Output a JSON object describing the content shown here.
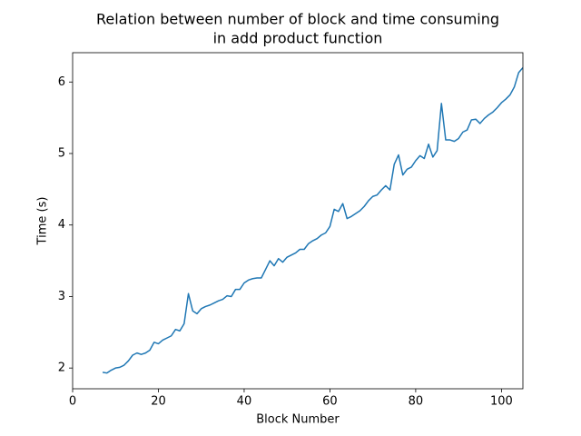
{
  "chart_data": {
    "type": "line",
    "title": [
      "Relation between number of block and time consuming",
      "in add product function"
    ],
    "x_label": "Block Number",
    "y_label": "Time (s)",
    "x": [
      7,
      8,
      9,
      10,
      11,
      12,
      13,
      14,
      15,
      16,
      17,
      18,
      19,
      20,
      21,
      22,
      23,
      24,
      25,
      26,
      27,
      28,
      29,
      30,
      31,
      32,
      33,
      34,
      35,
      36,
      37,
      38,
      39,
      40,
      41,
      42,
      43,
      44,
      45,
      46,
      47,
      48,
      49,
      50,
      51,
      52,
      53,
      54,
      55,
      56,
      57,
      58,
      59,
      60,
      61,
      62,
      63,
      64,
      65,
      66,
      67,
      68,
      69,
      70,
      71,
      72,
      73,
      74,
      75,
      76,
      77,
      78,
      79,
      80,
      81,
      82,
      83,
      84,
      85,
      86,
      87,
      88,
      89,
      90,
      91,
      92,
      93,
      94,
      95,
      96,
      97,
      98,
      99,
      100,
      101,
      102,
      103,
      104,
      105
    ],
    "series": [
      {
        "color": "#1f77b4",
        "values": [
          1.94,
          1.93,
          1.97,
          2.0,
          2.01,
          2.04,
          2.1,
          2.18,
          2.21,
          2.19,
          2.21,
          2.25,
          2.36,
          2.34,
          2.39,
          2.42,
          2.45,
          2.54,
          2.52,
          2.62,
          3.04,
          2.8,
          2.76,
          2.83,
          2.86,
          2.88,
          2.91,
          2.94,
          2.96,
          3.01,
          3.0,
          3.1,
          3.1,
          3.19,
          3.23,
          3.25,
          3.26,
          3.26,
          3.38,
          3.5,
          3.43,
          3.53,
          3.48,
          3.55,
          3.58,
          3.61,
          3.66,
          3.66,
          3.74,
          3.78,
          3.81,
          3.86,
          3.89,
          3.98,
          4.22,
          4.19,
          4.3,
          4.09,
          4.12,
          4.16,
          4.2,
          4.26,
          4.34,
          4.4,
          4.42,
          4.49,
          4.55,
          4.49,
          4.85,
          4.98,
          4.7,
          4.78,
          4.81,
          4.9,
          4.97,
          4.93,
          5.13,
          4.95,
          5.04,
          5.7,
          5.19,
          5.19,
          5.17,
          5.21,
          5.3,
          5.33,
          5.47,
          5.48,
          5.42,
          5.49,
          5.54,
          5.58,
          5.64,
          5.71,
          5.76,
          5.82,
          5.93,
          6.13,
          6.2
        ]
      }
    ],
    "xlim": [
      0,
      105
    ],
    "ylim": [
      1.71,
      6.41
    ],
    "xticks": [
      0,
      20,
      40,
      60,
      80,
      100
    ],
    "yticks": [
      2,
      3,
      4,
      5,
      6
    ],
    "grid": false
  }
}
